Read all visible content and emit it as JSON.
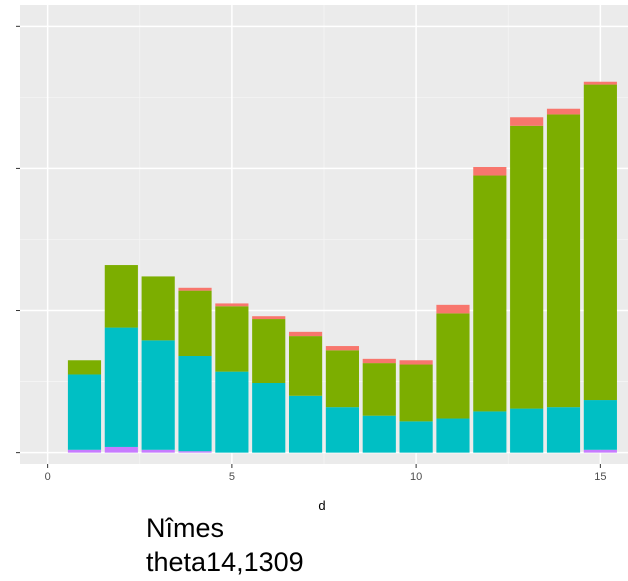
{
  "chart_data": {
    "type": "bar",
    "stacked": true,
    "xlabel": "d",
    "ylabel": "",
    "x": [
      1,
      2,
      3,
      4,
      5,
      6,
      7,
      8,
      9,
      10,
      11,
      12,
      13,
      14,
      15
    ],
    "xticks": [
      0,
      5,
      10,
      15
    ],
    "xticklabels": [
      "0",
      "5",
      "10",
      "15"
    ],
    "xlim": [
      -0.75,
      15.75
    ],
    "yticks": [
      0,
      1,
      2,
      3
    ],
    "yticklabels": [
      "",
      "",
      "",
      ""
    ],
    "ylim": [
      -0.08,
      3.15
    ],
    "grid": true,
    "legend": "none",
    "series": [
      {
        "color": "#C77CFF",
        "values": [
          0.02,
          0.04,
          0.02,
          0.01,
          0,
          0,
          0,
          0,
          0,
          0,
          0,
          0,
          0,
          0,
          0.02
        ]
      },
      {
        "color": "#00BFC4",
        "values": [
          0.53,
          0.84,
          0.77,
          0.67,
          0.57,
          0.49,
          0.4,
          0.32,
          0.26,
          0.22,
          0.24,
          0.29,
          0.31,
          0.32,
          0.35
        ]
      },
      {
        "color": "#7CAE00",
        "values": [
          0.1,
          0.44,
          0.45,
          0.46,
          0.46,
          0.45,
          0.42,
          0.4,
          0.37,
          0.4,
          0.74,
          1.66,
          1.99,
          2.06,
          2.22
        ]
      },
      {
        "color": "#F8766D",
        "values": [
          0,
          0,
          0,
          0.02,
          0.02,
          0.02,
          0.03,
          0.03,
          0.03,
          0.03,
          0.06,
          0.06,
          0.06,
          0.04,
          0.02
        ]
      }
    ]
  },
  "caption": {
    "line1": "Nîmes",
    "line2": "theta14,1309"
  }
}
